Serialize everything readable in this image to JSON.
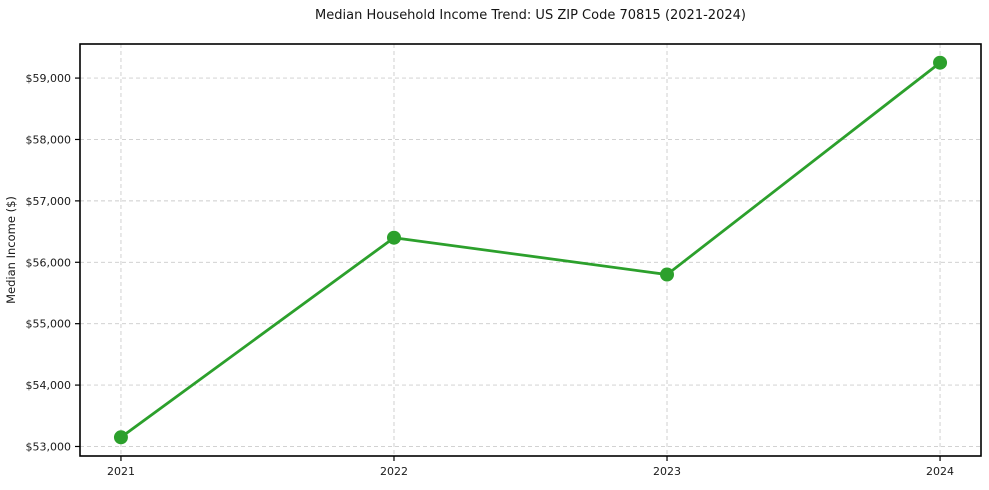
{
  "page": {
    "background_color": "#ffffff"
  },
  "chart_data": {
    "type": "line",
    "title": "Median Household Income Trend: US ZIP Code 70815 (2021-2024)",
    "xlabel": "",
    "ylabel": "Median Income ($)",
    "x": [
      2021,
      2022,
      2023,
      2024
    ],
    "xticks": [
      "2021",
      "2022",
      "2023",
      "2024"
    ],
    "series": [
      {
        "name": "Median Household Income",
        "color": "#2ca02c",
        "values": [
          53150,
          56400,
          55800,
          59250
        ]
      }
    ],
    "yticks": [
      {
        "value": 53000,
        "label": "$53,000"
      },
      {
        "value": 54000,
        "label": "$54,000"
      },
      {
        "value": 55000,
        "label": "$55,000"
      },
      {
        "value": 56000,
        "label": "$56,000"
      },
      {
        "value": 57000,
        "label": "$57,000"
      },
      {
        "value": 58000,
        "label": "$58,000"
      },
      {
        "value": 59000,
        "label": "$59,000"
      }
    ],
    "ylim": [
      52845,
      59555
    ],
    "xlim": [
      2020.85,
      2024.15
    ],
    "grid": true,
    "grid_style": "dashed",
    "grid_color": "#cccccc",
    "spine_color": "#000000",
    "line_width": 2.8,
    "marker": "circle",
    "marker_size": 7,
    "legend_position": "none"
  }
}
